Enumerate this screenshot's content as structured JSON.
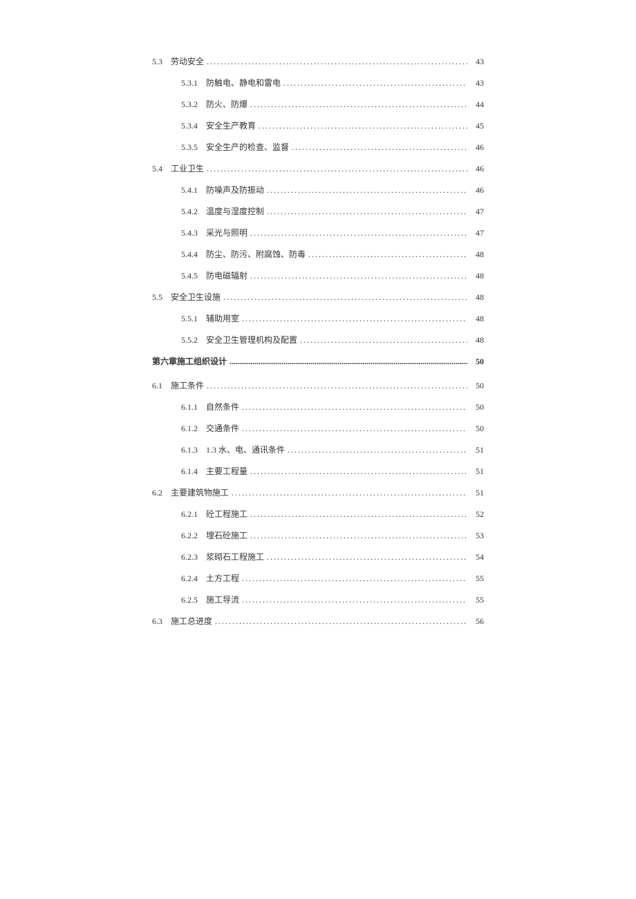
{
  "fontFamily": "SimSun",
  "fontSize": 12,
  "textColor": "#333333",
  "backgroundColor": "#ffffff",
  "entries": [
    {
      "level": "level1",
      "number": "5.3",
      "title": "劳动安全",
      "page": "43"
    },
    {
      "level": "level2",
      "number": "5.3.1",
      "title": "防触电、静电和雷电",
      "page": "43"
    },
    {
      "level": "level2",
      "number": "5.3.2",
      "title": "防火、防爆",
      "page": "44"
    },
    {
      "level": "level2",
      "number": "5.3.4",
      "title": "安全生产教育",
      "page": "45"
    },
    {
      "level": "level2",
      "number": "5.3.5",
      "title": "安全生产的检查、监督",
      "page": "46"
    },
    {
      "level": "level1",
      "number": "5.4",
      "title": "工业卫生",
      "page": "46"
    },
    {
      "level": "level2",
      "number": "5.4.1",
      "title": "防噪声及防振动",
      "page": "46"
    },
    {
      "level": "level2",
      "number": "5.4.2",
      "title": "温度与湿度控制",
      "page": "47"
    },
    {
      "level": "level2",
      "number": "5.4.3",
      "title": "采光与照明",
      "page": "47"
    },
    {
      "level": "level2",
      "number": "5.4.4",
      "title": "防尘、防污、附腐蚀、防毒",
      "page": "48"
    },
    {
      "level": "level2",
      "number": "5.4.5",
      "title": "防电磁辐射",
      "page": "48"
    },
    {
      "level": "level1",
      "number": "5.5",
      "title": "安全卫生设施",
      "page": "48"
    },
    {
      "level": "level2",
      "number": "5.5.1",
      "title": "辅助用室",
      "page": "48"
    },
    {
      "level": "level2",
      "number": "5.5.2",
      "title": "安全卫生管理机构及配置",
      "page": "48"
    },
    {
      "level": "chapter",
      "number": "",
      "title": "第六章施工组织设计",
      "page": "50"
    },
    {
      "level": "level1",
      "number": "6.1",
      "title": "施工条件",
      "page": "50"
    },
    {
      "level": "level2",
      "number": "6.1.1",
      "title": "自然条件",
      "page": "50"
    },
    {
      "level": "level2",
      "number": "6.1.2",
      "title": "交通条件",
      "page": "50"
    },
    {
      "level": "level2",
      "number": "6.1.3",
      "title": "1.3 水、电、通讯条件",
      "page": "51"
    },
    {
      "level": "level2",
      "number": "6.1.4",
      "title": "主要工程量",
      "page": "51"
    },
    {
      "level": "level1",
      "number": "6.2",
      "title": "主要建筑物施工",
      "page": "51"
    },
    {
      "level": "level2",
      "number": "6.2.1",
      "title": "砼工程施工",
      "page": "52"
    },
    {
      "level": "level2",
      "number": "6.2.2",
      "title": "埋石砼施工",
      "page": "53"
    },
    {
      "level": "level2",
      "number": "6.2.3",
      "title": "浆砌石工程施工",
      "page": "54"
    },
    {
      "level": "level2",
      "number": "6.2.4",
      "title": "土方工程",
      "page": "55"
    },
    {
      "level": "level2",
      "number": "6.2.5",
      "title": "施工导流",
      "page": "55"
    },
    {
      "level": "level1",
      "number": "6.3",
      "title": "施工总进度",
      "page": "56"
    }
  ]
}
